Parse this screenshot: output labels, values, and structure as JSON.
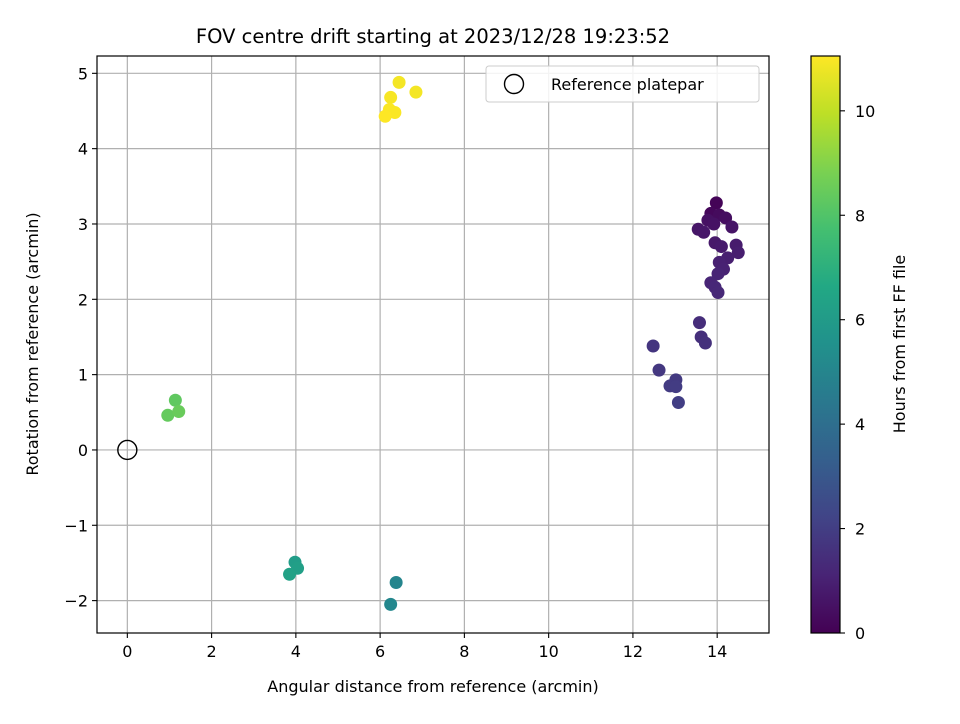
{
  "chart_data": {
    "type": "scatter",
    "title": "FOV centre drift starting at 2023/12/28 19:23:52",
    "xlabel": "Angular distance from reference (arcmin)",
    "ylabel": "Rotation from reference (arcmin)",
    "xlim": [
      -0.72,
      15.23
    ],
    "ylim": [
      -2.43,
      5.23
    ],
    "xticks": [
      0,
      2,
      4,
      6,
      8,
      10,
      12,
      14
    ],
    "xtick_labels": [
      "0",
      "2",
      "4",
      "6",
      "8",
      "10",
      "12",
      "14"
    ],
    "yticks": [
      -2,
      -1,
      0,
      1,
      2,
      3,
      4,
      5
    ],
    "ytick_labels": [
      "−2",
      "−1",
      "0",
      "1",
      "2",
      "3",
      "4",
      "5"
    ],
    "grid": true,
    "legend": {
      "position": "upper-right",
      "label": "Reference platepar"
    },
    "reference_point": {
      "x": 0,
      "y": 0
    },
    "colorbar": {
      "label": "Hours from first FF file",
      "colormap": "viridis",
      "range": [
        0,
        11.05
      ],
      "ticks": [
        0,
        2,
        4,
        6,
        8,
        10
      ],
      "tick_labels": [
        "0",
        "2",
        "4",
        "6",
        "8",
        "10"
      ]
    },
    "points": [
      {
        "x": 13.98,
        "y": 3.28,
        "hours": 0.1
      },
      {
        "x": 13.85,
        "y": 3.14,
        "hours": 0.2
      },
      {
        "x": 14.05,
        "y": 3.12,
        "hours": 0.3
      },
      {
        "x": 14.2,
        "y": 3.08,
        "hours": 0.4
      },
      {
        "x": 13.78,
        "y": 3.05,
        "hours": 0.5
      },
      {
        "x": 13.92,
        "y": 3.0,
        "hours": 0.55
      },
      {
        "x": 14.35,
        "y": 2.96,
        "hours": 0.6
      },
      {
        "x": 13.55,
        "y": 2.93,
        "hours": 0.65
      },
      {
        "x": 13.68,
        "y": 2.89,
        "hours": 0.7
      },
      {
        "x": 13.95,
        "y": 2.75,
        "hours": 0.75
      },
      {
        "x": 14.1,
        "y": 2.7,
        "hours": 0.8
      },
      {
        "x": 14.45,
        "y": 2.72,
        "hours": 0.85
      },
      {
        "x": 14.5,
        "y": 2.62,
        "hours": 0.9
      },
      {
        "x": 14.25,
        "y": 2.55,
        "hours": 0.95
      },
      {
        "x": 14.05,
        "y": 2.49,
        "hours": 1.0
      },
      {
        "x": 14.15,
        "y": 2.4,
        "hours": 1.05
      },
      {
        "x": 14.02,
        "y": 2.34,
        "hours": 1.1
      },
      {
        "x": 13.85,
        "y": 2.22,
        "hours": 1.15
      },
      {
        "x": 13.95,
        "y": 2.16,
        "hours": 1.2
      },
      {
        "x": 14.02,
        "y": 2.09,
        "hours": 1.25
      },
      {
        "x": 13.58,
        "y": 1.69,
        "hours": 1.4
      },
      {
        "x": 13.62,
        "y": 1.5,
        "hours": 1.5
      },
      {
        "x": 13.72,
        "y": 1.42,
        "hours": 1.55
      },
      {
        "x": 12.48,
        "y": 1.38,
        "hours": 1.7
      },
      {
        "x": 12.62,
        "y": 1.06,
        "hours": 1.8
      },
      {
        "x": 13.02,
        "y": 0.93,
        "hours": 1.85
      },
      {
        "x": 12.88,
        "y": 0.85,
        "hours": 1.9
      },
      {
        "x": 13.02,
        "y": 0.84,
        "hours": 1.95
      },
      {
        "x": 13.08,
        "y": 0.63,
        "hours": 2.0
      },
      {
        "x": 6.38,
        "y": -1.76,
        "hours": 5.0
      },
      {
        "x": 6.25,
        "y": -2.05,
        "hours": 5.1
      },
      {
        "x": 3.98,
        "y": -1.49,
        "hours": 6.1
      },
      {
        "x": 4.04,
        "y": -1.57,
        "hours": 6.2
      },
      {
        "x": 3.85,
        "y": -1.65,
        "hours": 6.3
      },
      {
        "x": 1.14,
        "y": 0.66,
        "hours": 8.3
      },
      {
        "x": 0.96,
        "y": 0.46,
        "hours": 8.4
      },
      {
        "x": 1.22,
        "y": 0.51,
        "hours": 8.5
      },
      {
        "x": 6.45,
        "y": 4.88,
        "hours": 10.9
      },
      {
        "x": 6.85,
        "y": 4.75,
        "hours": 10.9
      },
      {
        "x": 6.25,
        "y": 4.68,
        "hours": 10.95
      },
      {
        "x": 6.22,
        "y": 4.52,
        "hours": 11.0
      },
      {
        "x": 6.35,
        "y": 4.48,
        "hours": 11.0
      },
      {
        "x": 6.12,
        "y": 4.43,
        "hours": 11.05
      }
    ]
  }
}
